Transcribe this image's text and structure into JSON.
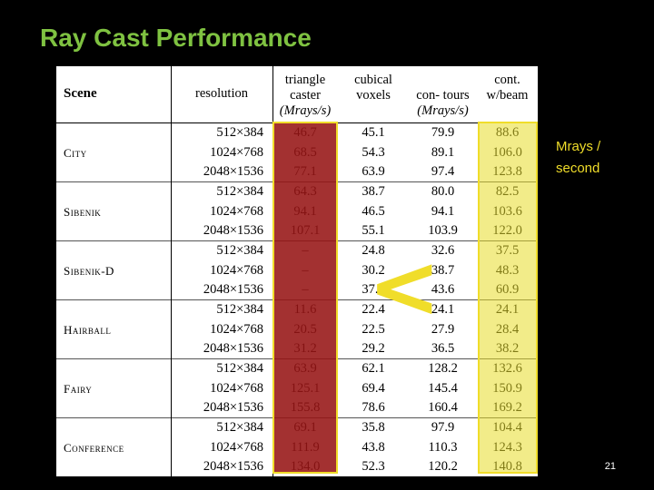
{
  "slide": {
    "title": "Ray Cast Performance",
    "side_note": "Mrays / second",
    "page_number": "21",
    "accent_green": "#7fc241",
    "highlight_yellow": "#f0dd2a",
    "highlight_red": "#961414",
    "comparison_symbol": "<"
  },
  "table": {
    "headers": {
      "scene": "Scene",
      "resolution": "resolution",
      "triangle_caster": "triangle caster",
      "triangle_unit": "(Mrays/s)",
      "cubical_voxels": "cubical voxels",
      "contours": "con- tours",
      "contours_unit": "(Mrays/s)",
      "cont_beam": "cont. w/beam"
    },
    "scenes": [
      {
        "name": "City",
        "rows": [
          [
            "512×384",
            "46.7",
            "45.1",
            "79.9",
            "88.6"
          ],
          [
            "1024×768",
            "68.5",
            "54.3",
            "89.1",
            "106.0"
          ],
          [
            "2048×1536",
            "77.1",
            "63.9",
            "97.4",
            "123.8"
          ]
        ]
      },
      {
        "name": "Sibenik",
        "rows": [
          [
            "512×384",
            "64.3",
            "38.7",
            "80.0",
            "82.5"
          ],
          [
            "1024×768",
            "94.1",
            "46.5",
            "94.1",
            "103.6"
          ],
          [
            "2048×1536",
            "107.1",
            "55.1",
            "103.9",
            "122.0"
          ]
        ]
      },
      {
        "name": "Sibenik-D",
        "rows": [
          [
            "512×384",
            "–",
            "24.8",
            "32.6",
            "37.5"
          ],
          [
            "1024×768",
            "–",
            "30.2",
            "38.7",
            "48.3"
          ],
          [
            "2048×1536",
            "–",
            "37.0",
            "43.6",
            "60.9"
          ]
        ]
      },
      {
        "name": "Hairball",
        "rows": [
          [
            "512×384",
            "11.6",
            "22.4",
            "24.1",
            "24.1"
          ],
          [
            "1024×768",
            "20.5",
            "22.5",
            "27.9",
            "28.4"
          ],
          [
            "2048×1536",
            "31.2",
            "29.2",
            "36.5",
            "38.2"
          ]
        ]
      },
      {
        "name": "Fairy",
        "rows": [
          [
            "512×384",
            "63.9",
            "62.1",
            "128.2",
            "132.6"
          ],
          [
            "1024×768",
            "125.1",
            "69.4",
            "145.4",
            "150.9"
          ],
          [
            "2048×1536",
            "155.8",
            "78.6",
            "160.4",
            "169.2"
          ]
        ]
      },
      {
        "name": "Conference",
        "rows": [
          [
            "512×384",
            "69.1",
            "35.8",
            "97.9",
            "104.4"
          ],
          [
            "1024×768",
            "111.9",
            "43.8",
            "110.3",
            "124.3"
          ],
          [
            "2048×1536",
            "134.0",
            "52.3",
            "120.2",
            "140.8"
          ]
        ]
      }
    ]
  }
}
